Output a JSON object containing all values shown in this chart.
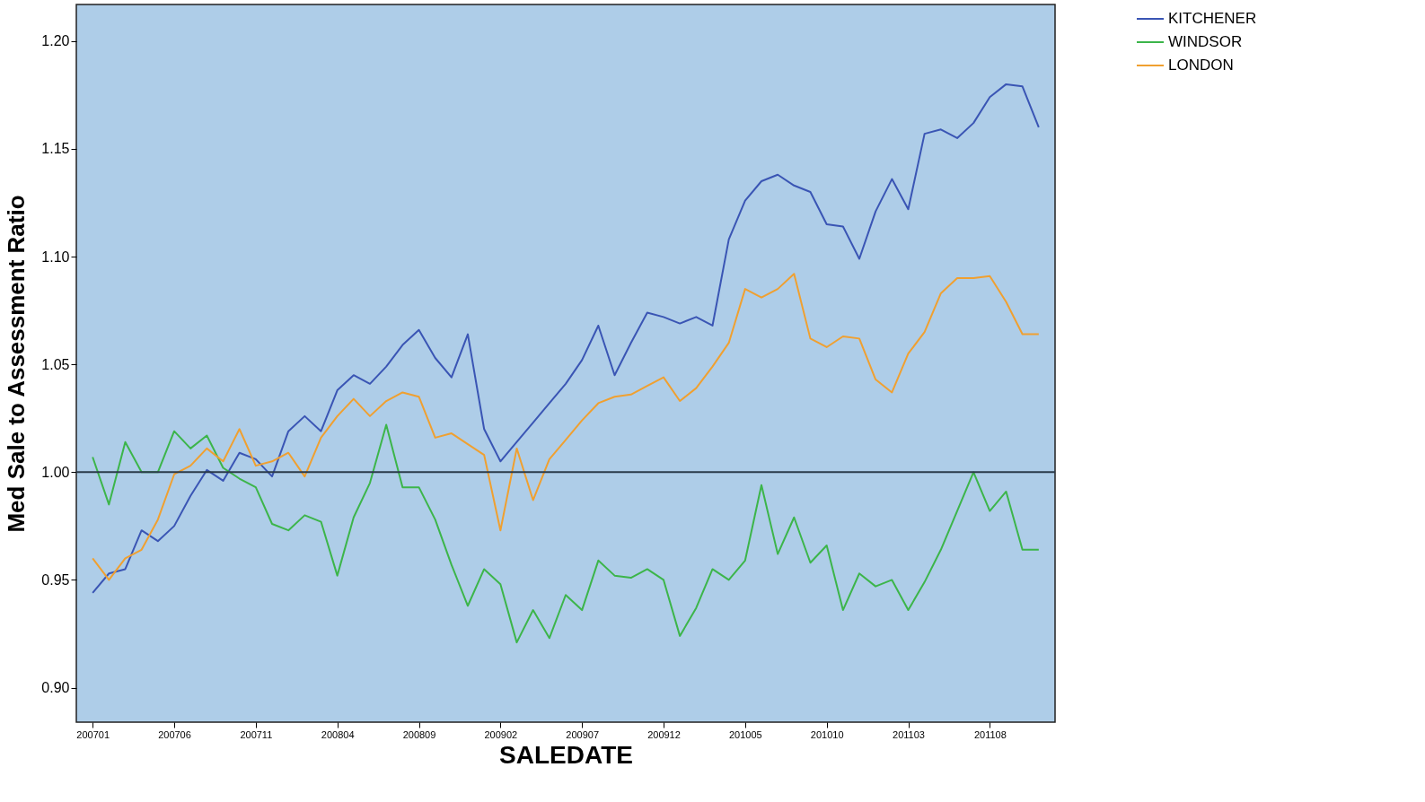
{
  "chart_data": {
    "type": "line",
    "xlabel": "SALEDATE",
    "ylabel": "Med Sale to Assessment Ratio",
    "categories": [
      "200701",
      null,
      null,
      null,
      null,
      "200706",
      null,
      null,
      null,
      null,
      "200711",
      null,
      null,
      null,
      null,
      "200804",
      null,
      null,
      null,
      null,
      "200809",
      null,
      null,
      null,
      null,
      "200902",
      null,
      null,
      null,
      null,
      "200907",
      null,
      null,
      null,
      null,
      "200912",
      null,
      null,
      null,
      null,
      "201005",
      null,
      null,
      null,
      null,
      "201010",
      null,
      null,
      null,
      null,
      "201103",
      null,
      null,
      null,
      null,
      "201108",
      null,
      null,
      null
    ],
    "series": [
      {
        "name": "KITCHENER",
        "color": "#3a55b4",
        "values": [
          0.944,
          0.953,
          0.955,
          0.973,
          0.968,
          0.975,
          0.989,
          1.001,
          0.996,
          1.009,
          1.006,
          0.998,
          1.019,
          1.026,
          1.019,
          1.038,
          1.045,
          1.041,
          1.049,
          1.059,
          1.066,
          1.053,
          1.044,
          1.064,
          1.02,
          1.005,
          1.014,
          1.023,
          1.032,
          1.041,
          1.052,
          1.068,
          1.045,
          1.06,
          1.074,
          1.072,
          1.069,
          1.072,
          1.068,
          1.108,
          1.126,
          1.135,
          1.138,
          1.133,
          1.13,
          1.115,
          1.114,
          1.099,
          1.121,
          1.136,
          1.122,
          1.157,
          1.159,
          1.155,
          1.162,
          1.174,
          1.18,
          1.179,
          1.16
        ]
      },
      {
        "name": "WINDSOR",
        "color": "#3cb54a",
        "values": [
          1.007,
          0.985,
          1.014,
          1.0,
          1.0,
          1.019,
          1.011,
          1.017,
          1.002,
          0.997,
          0.993,
          0.976,
          0.973,
          0.98,
          0.977,
          0.952,
          0.979,
          0.995,
          1.022,
          0.993,
          0.993,
          0.978,
          0.957,
          0.938,
          0.955,
          0.948,
          0.921,
          0.936,
          0.923,
          0.943,
          0.936,
          0.959,
          0.952,
          0.951,
          0.955,
          0.95,
          0.924,
          0.937,
          0.955,
          0.95,
          0.959,
          0.994,
          0.962,
          0.979,
          0.958,
          0.966,
          0.936,
          0.953,
          0.947,
          0.95,
          0.936,
          0.949,
          0.964,
          0.982,
          1.0,
          0.982,
          0.991,
          0.964,
          0.964
        ]
      },
      {
        "name": "LONDON",
        "color": "#f0a030",
        "values": [
          0.96,
          0.95,
          0.96,
          0.964,
          0.978,
          0.999,
          1.003,
          1.011,
          1.005,
          1.02,
          1.003,
          1.005,
          1.009,
          0.998,
          1.016,
          1.026,
          1.034,
          1.026,
          1.033,
          1.037,
          1.035,
          1.016,
          1.018,
          1.013,
          1.008,
          0.973,
          1.011,
          0.987,
          1.006,
          1.015,
          1.024,
          1.032,
          1.035,
          1.036,
          1.04,
          1.044,
          1.033,
          1.039,
          1.049,
          1.06,
          1.085,
          1.081,
          1.085,
          1.092,
          1.062,
          1.058,
          1.063,
          1.062,
          1.043,
          1.037,
          1.055,
          1.065,
          1.083,
          1.09,
          1.09,
          1.091,
          1.079,
          1.064,
          1.064
        ]
      }
    ],
    "ylim": [
      0.884,
      1.217
    ],
    "yticks": [
      {
        "value": 0.9,
        "label": "0.90"
      },
      {
        "value": 0.95,
        "label": "0.95"
      },
      {
        "value": 1.0,
        "label": "1.00"
      },
      {
        "value": 1.05,
        "label": "1.05"
      },
      {
        "value": 1.1,
        "label": "1.10"
      },
      {
        "value": 1.15,
        "label": "1.15"
      },
      {
        "value": 1.2,
        "label": "1.20"
      }
    ],
    "ref_lines": [
      {
        "axis": "y",
        "value": 1.0,
        "color": "#2a3a4a"
      }
    ],
    "grid": false,
    "legend": "top right",
    "marker": "none",
    "line_style": "solid"
  }
}
